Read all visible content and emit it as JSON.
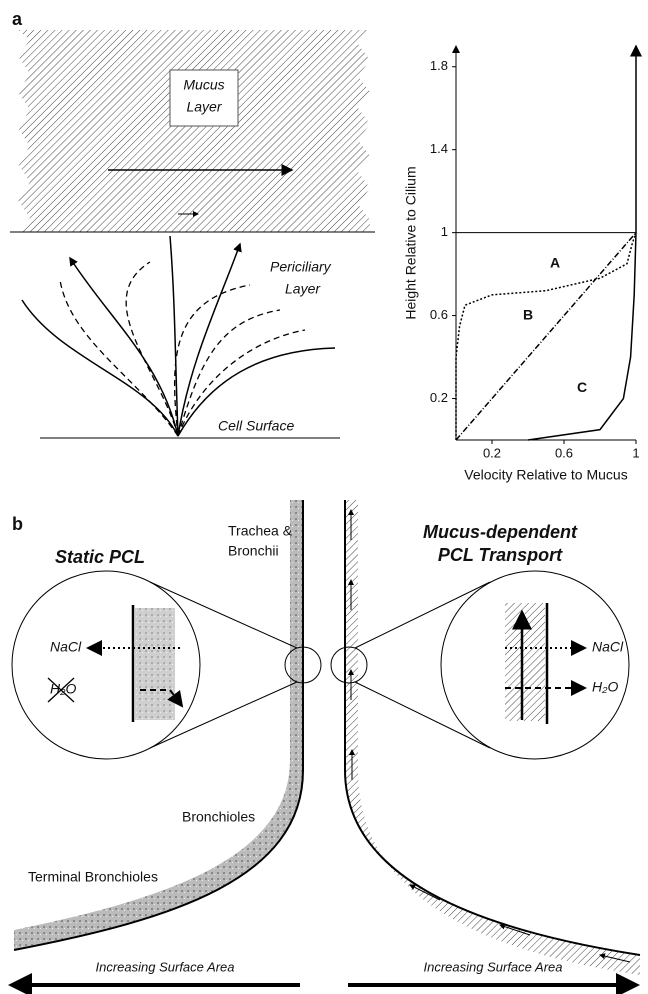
{
  "panel_a": {
    "label": "a",
    "mucus_label": [
      "Mucus",
      "Layer"
    ],
    "pcl_label": [
      "Periciliary",
      "Layer"
    ],
    "cell_surface": "Cell Surface"
  },
  "chart_data": {
    "type": "line",
    "xlabel": "Velocity Relative to Mucus",
    "ylabel": "Height Relative to Cilium",
    "xlim": [
      0,
      1
    ],
    "ylim": [
      0,
      1.9
    ],
    "xticks": [
      0.2,
      0.6,
      1.0
    ],
    "yticks": [
      0.2,
      0.6,
      1.0,
      1.4,
      1.8
    ],
    "series": [
      {
        "name": "A",
        "style": "dotted",
        "x": [
          0,
          0,
          0.02,
          0.05,
          0.2,
          0.5,
          0.8,
          0.95,
          0.98,
          1.0
        ],
        "values": [
          0,
          0.4,
          0.55,
          0.65,
          0.7,
          0.72,
          0.78,
          0.85,
          0.95,
          1.0
        ]
      },
      {
        "name": "B",
        "style": "dashdot",
        "x": [
          0,
          1.0
        ],
        "values": [
          0,
          1.0
        ]
      },
      {
        "name": "C",
        "style": "solid",
        "x": [
          0.4,
          0.8,
          0.93,
          0.97,
          0.99,
          1.0,
          1.0
        ],
        "values": [
          0,
          0.05,
          0.2,
          0.4,
          0.7,
          1.0,
          1.9
        ]
      }
    ]
  },
  "panel_b": {
    "label": "b",
    "trachea": [
      "Trachea &",
      "Bronchii"
    ],
    "static": "Static PCL",
    "transport": [
      "Mucus-dependent",
      "PCL Transport"
    ],
    "nacl": "NaCl",
    "h2o": "H₂O",
    "bronchioles": "Bronchioles",
    "terminal": "Terminal Bronchioles",
    "surface_left": "Increasing Surface Area",
    "surface_right": "Increasing Surface Area"
  }
}
